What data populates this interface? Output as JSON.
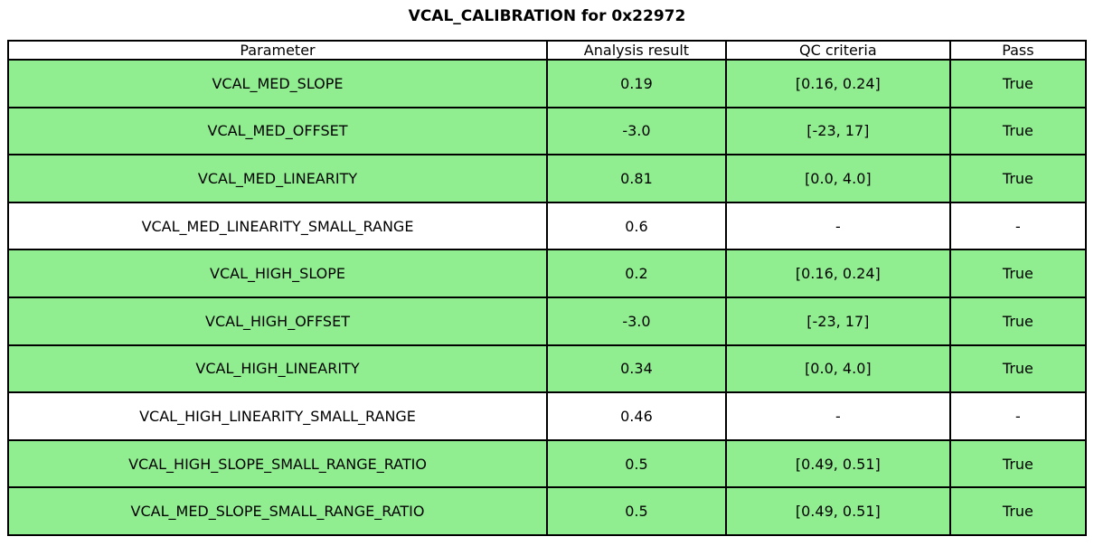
{
  "title": "VCAL_CALIBRATION for 0x22972",
  "colors": {
    "pass_row_green": "#90EE90",
    "plain_row_white": "#ffffff",
    "border_black": "#000000"
  },
  "table": {
    "headers": [
      "Parameter",
      "Analysis result",
      "QC criteria",
      "Pass"
    ],
    "rows": [
      {
        "parameter": "VCAL_MED_SLOPE",
        "result": "0.19",
        "criteria": "[0.16, 0.24]",
        "pass": "True",
        "highlight": true
      },
      {
        "parameter": "VCAL_MED_OFFSET",
        "result": "-3.0",
        "criteria": "[-23, 17]",
        "pass": "True",
        "highlight": true
      },
      {
        "parameter": "VCAL_MED_LINEARITY",
        "result": "0.81",
        "criteria": "[0.0, 4.0]",
        "pass": "True",
        "highlight": true
      },
      {
        "parameter": "VCAL_MED_LINEARITY_SMALL_RANGE",
        "result": "0.6",
        "criteria": "-",
        "pass": "-",
        "highlight": false
      },
      {
        "parameter": "VCAL_HIGH_SLOPE",
        "result": "0.2",
        "criteria": "[0.16, 0.24]",
        "pass": "True",
        "highlight": true
      },
      {
        "parameter": "VCAL_HIGH_OFFSET",
        "result": "-3.0",
        "criteria": "[-23, 17]",
        "pass": "True",
        "highlight": true
      },
      {
        "parameter": "VCAL_HIGH_LINEARITY",
        "result": "0.34",
        "criteria": "[0.0, 4.0]",
        "pass": "True",
        "highlight": true
      },
      {
        "parameter": "VCAL_HIGH_LINEARITY_SMALL_RANGE",
        "result": "0.46",
        "criteria": "-",
        "pass": "-",
        "highlight": false
      },
      {
        "parameter": "VCAL_HIGH_SLOPE_SMALL_RANGE_RATIO",
        "result": "0.5",
        "criteria": "[0.49, 0.51]",
        "pass": "True",
        "highlight": true
      },
      {
        "parameter": "VCAL_MED_SLOPE_SMALL_RANGE_RATIO",
        "result": "0.5",
        "criteria": "[0.49, 0.51]",
        "pass": "True",
        "highlight": true
      }
    ]
  }
}
